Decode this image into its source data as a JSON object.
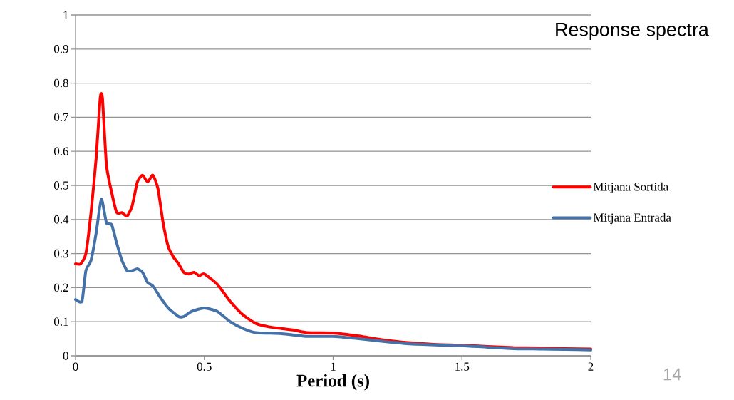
{
  "chart_data": {
    "type": "line",
    "title": "Response spectra",
    "xlabel": "Period (s)",
    "annotations": [
      "14"
    ],
    "xlim": [
      0,
      2
    ],
    "ylim": [
      0,
      1
    ],
    "xticks": [
      0,
      0.5,
      1,
      1.5,
      2
    ],
    "yticks": [
      0,
      0.1,
      0.2,
      0.3,
      0.4,
      0.5,
      0.6,
      0.7,
      0.8,
      0.9,
      1
    ],
    "grid": "y",
    "legend": "right",
    "marker": "none",
    "line_style": "solid",
    "series": [
      {
        "name": "Mitjana Sortida",
        "color": "#ff0000",
        "x": [
          0,
          0.02,
          0.04,
          0.06,
          0.08,
          0.095,
          0.1,
          0.105,
          0.12,
          0.14,
          0.16,
          0.18,
          0.2,
          0.22,
          0.24,
          0.26,
          0.28,
          0.3,
          0.32,
          0.34,
          0.36,
          0.38,
          0.4,
          0.42,
          0.44,
          0.46,
          0.48,
          0.5,
          0.55,
          0.6,
          0.65,
          0.7,
          0.75,
          0.8,
          0.85,
          0.9,
          1.0,
          1.1,
          1.2,
          1.3,
          1.4,
          1.5,
          1.6,
          1.7,
          1.8,
          1.9,
          2.0
        ],
        "values": [
          0.27,
          0.27,
          0.3,
          0.42,
          0.58,
          0.75,
          0.77,
          0.75,
          0.56,
          0.48,
          0.42,
          0.42,
          0.41,
          0.44,
          0.51,
          0.53,
          0.51,
          0.53,
          0.49,
          0.39,
          0.32,
          0.29,
          0.27,
          0.245,
          0.24,
          0.245,
          0.235,
          0.24,
          0.21,
          0.16,
          0.12,
          0.095,
          0.085,
          0.08,
          0.075,
          0.068,
          0.067,
          0.058,
          0.046,
          0.038,
          0.033,
          0.031,
          0.027,
          0.024,
          0.023,
          0.021,
          0.02
        ]
      },
      {
        "name": "Mitjana Entrada",
        "color": "#4472a8",
        "x": [
          0,
          0.025,
          0.04,
          0.06,
          0.08,
          0.1,
          0.12,
          0.14,
          0.16,
          0.18,
          0.2,
          0.22,
          0.24,
          0.26,
          0.28,
          0.3,
          0.33,
          0.36,
          0.4,
          0.42,
          0.45,
          0.5,
          0.55,
          0.6,
          0.65,
          0.7,
          0.8,
          0.9,
          1.0,
          1.1,
          1.2,
          1.3,
          1.4,
          1.5,
          1.6,
          1.7,
          1.8,
          1.9,
          2.0
        ],
        "values": [
          0.165,
          0.16,
          0.25,
          0.28,
          0.36,
          0.46,
          0.39,
          0.385,
          0.33,
          0.28,
          0.25,
          0.25,
          0.255,
          0.245,
          0.215,
          0.205,
          0.17,
          0.14,
          0.115,
          0.115,
          0.13,
          0.14,
          0.13,
          0.1,
          0.08,
          0.068,
          0.065,
          0.057,
          0.057,
          0.05,
          0.042,
          0.035,
          0.032,
          0.03,
          0.025,
          0.021,
          0.02,
          0.019,
          0.017
        ]
      }
    ]
  }
}
